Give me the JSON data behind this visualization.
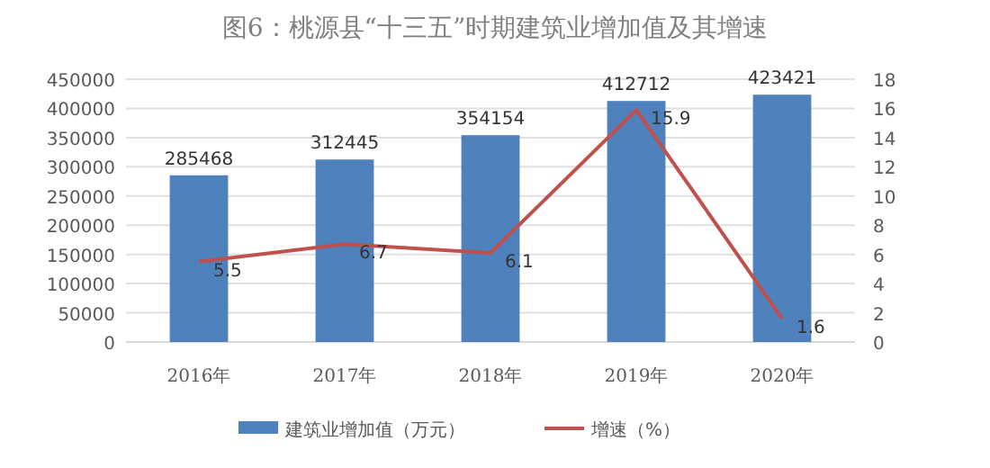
{
  "chart_data": {
    "type": "bar",
    "title": "图6：桃源县“十三五”时期建筑业增加值及其增速",
    "categories": [
      "2016年",
      "2017年",
      "2018年",
      "2019年",
      "2020年"
    ],
    "series": [
      {
        "name": "建筑业增加值（万元）",
        "color": "#4f81bd",
        "values": [
          285468,
          312445,
          354154,
          412712,
          423421
        ]
      },
      {
        "name": "增速（%）",
        "type": "line",
        "axis": "y2",
        "color": "#c0504d",
        "values": [
          5.5,
          6.7,
          6.1,
          15.9,
          1.6
        ]
      }
    ],
    "ylim": [
      0,
      450000
    ],
    "yticks": [
      0,
      50000,
      100000,
      150000,
      200000,
      250000,
      300000,
      350000,
      400000,
      450000
    ],
    "y2lim": [
      0,
      18
    ],
    "y2ticks": [
      0,
      2,
      4,
      6,
      8,
      10,
      12,
      14,
      16,
      18
    ],
    "grid": "y",
    "legend": "bottom",
    "data_labels": true,
    "marker": "none",
    "line_style": "solid"
  }
}
